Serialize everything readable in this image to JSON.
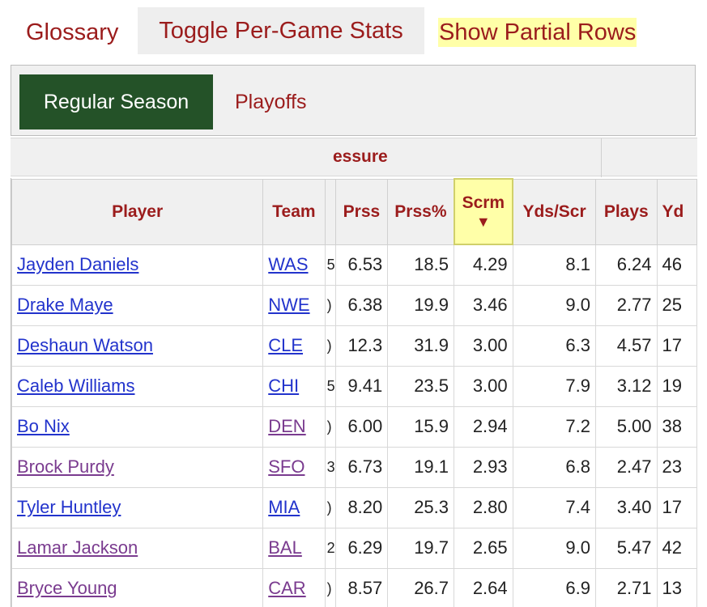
{
  "top_links": {
    "glossary": "Glossary",
    "toggle": "Toggle Per-Game Stats",
    "partial": "Show Partial Rows"
  },
  "tabs": {
    "regular": "Regular Season",
    "playoffs": "Playoffs"
  },
  "over_header": "essure",
  "columns": {
    "player": "Player",
    "team": "Team",
    "prss": "Prss",
    "prss_pct": "Prss%",
    "scrm": "Scrm",
    "scrm_arrow": "▼",
    "yds_scr": "Yds/Scr",
    "plays": "Plays",
    "yds": "Yd"
  },
  "rows": [
    {
      "player": "Jayden Daniels",
      "team": "WAS",
      "clip": "5",
      "prss": "6.53",
      "prss_pct": "18.5",
      "scrm": "4.29",
      "yds_scr": "8.1",
      "plays": "6.24",
      "yds": "46"
    },
    {
      "player": "Drake Maye",
      "team": "NWE",
      "clip": ")",
      "prss": "6.38",
      "prss_pct": "19.9",
      "scrm": "3.46",
      "yds_scr": "9.0",
      "plays": "2.77",
      "yds": "25"
    },
    {
      "player": "Deshaun Watson",
      "team": "CLE",
      "clip": ")",
      "prss": "12.3",
      "prss_pct": "31.9",
      "scrm": "3.00",
      "yds_scr": "6.3",
      "plays": "4.57",
      "yds": "17"
    },
    {
      "player": "Caleb Williams",
      "team": "CHI",
      "clip": "5",
      "prss": "9.41",
      "prss_pct": "23.5",
      "scrm": "3.00",
      "yds_scr": "7.9",
      "plays": "3.12",
      "yds": "19"
    },
    {
      "player": "Bo Nix",
      "team": "DEN",
      "clip": ")",
      "prss": "6.00",
      "prss_pct": "15.9",
      "scrm": "2.94",
      "yds_scr": "7.2",
      "plays": "5.00",
      "yds": "38"
    },
    {
      "player": "Brock Purdy",
      "team": "SFO",
      "clip": "3",
      "prss": "6.73",
      "prss_pct": "19.1",
      "scrm": "2.93",
      "yds_scr": "6.8",
      "plays": "2.47",
      "yds": "23"
    },
    {
      "player": "Tyler Huntley",
      "team": "MIA",
      "clip": ")",
      "prss": "8.20",
      "prss_pct": "25.3",
      "scrm": "2.80",
      "yds_scr": "7.4",
      "plays": "3.40",
      "yds": "17"
    },
    {
      "player": "Lamar Jackson",
      "team": "BAL",
      "clip": "2",
      "prss": "6.29",
      "prss_pct": "19.7",
      "scrm": "2.65",
      "yds_scr": "9.0",
      "plays": "5.47",
      "yds": "42"
    },
    {
      "player": "Bryce Young",
      "team": "CAR",
      "clip": ")",
      "prss": "8.57",
      "prss_pct": "26.7",
      "scrm": "2.64",
      "yds_scr": "6.9",
      "plays": "2.71",
      "yds": "13"
    }
  ],
  "colors": {
    "accent": "#9b1c1c",
    "tab_active": "#245228",
    "link": "#2233cc",
    "link_visited": "#7a3b8f",
    "highlight": "#ffffa8"
  }
}
